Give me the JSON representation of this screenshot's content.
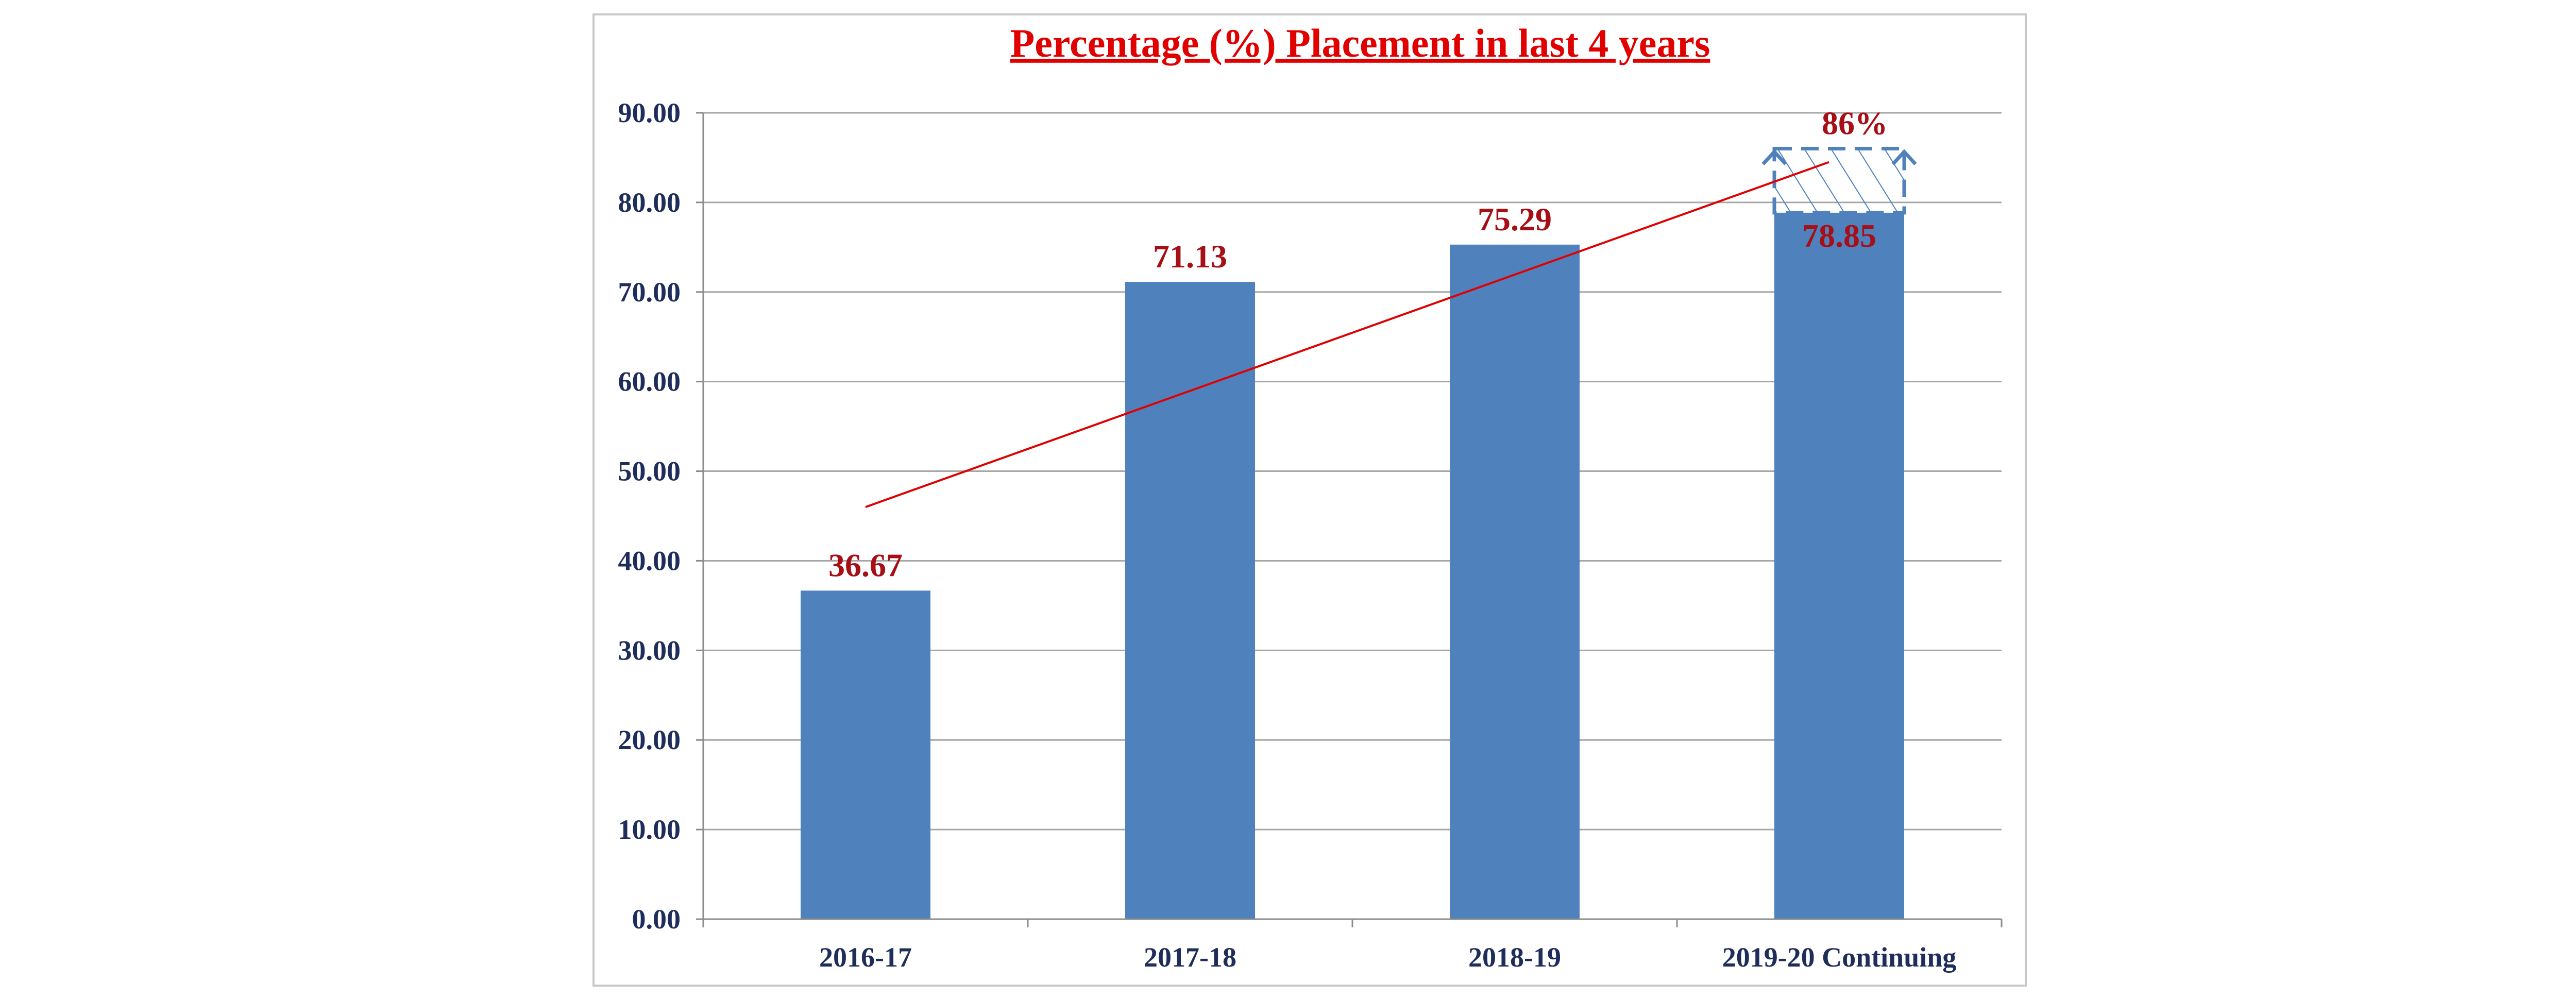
{
  "chart_data": {
    "type": "bar",
    "title": "Percentage (%) Placement in last 4 years",
    "categories": [
      "2016-17",
      "2017-18",
      "2018-19",
      "2019-20 Continuing"
    ],
    "values": [
      36.67,
      71.13,
      75.29,
      78.85
    ],
    "value_labels": [
      "36.67",
      "71.13",
      "75.29",
      "78.85"
    ],
    "ylim": [
      0,
      90
    ],
    "y_ticks": [
      "0.00",
      "10.00",
      "20.00",
      "30.00",
      "40.00",
      "50.00",
      "60.00",
      "70.00",
      "80.00",
      "90.00"
    ],
    "grid": true,
    "legend": "none",
    "trendline": {
      "start": 46,
      "end": 84.5
    },
    "projection": {
      "category": "2019-20 Continuing",
      "value": 86,
      "label": "86%"
    },
    "colors": {
      "bar": "#4f81bd",
      "grid": "#a6a6a6",
      "axis": "#8c8c8c",
      "tick_text": "#1f2d5a",
      "data_label": "#a50f15",
      "title": "#e00000",
      "trendline": "#e00000",
      "projection": "#4f81bd"
    }
  }
}
